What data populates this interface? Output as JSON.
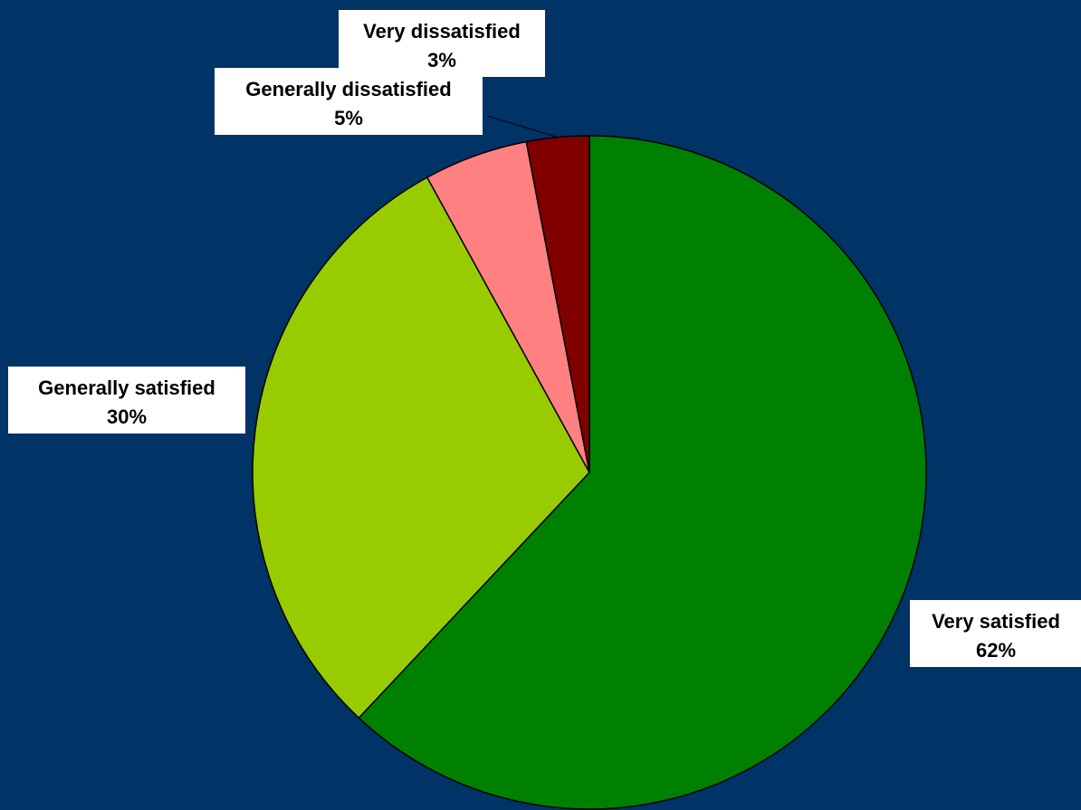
{
  "chart_data": {
    "type": "pie",
    "start_angle_deg": 0,
    "direction": "clockwise",
    "slices": [
      {
        "label": "Very satisfied",
        "value": 62,
        "value_label": "62%",
        "color": "#008000"
      },
      {
        "label": "Generally satisfied",
        "value": 30,
        "value_label": "30%",
        "color": "#99cc00"
      },
      {
        "label": "Generally dissatisfied",
        "value": 5,
        "value_label": "5%",
        "color": "#ff8080"
      },
      {
        "label": "Very dissatisfied",
        "value": 3,
        "value_label": "3%",
        "color": "#800000"
      }
    ],
    "label_background": "#ffffff",
    "background": "#003366",
    "legend": "none"
  }
}
